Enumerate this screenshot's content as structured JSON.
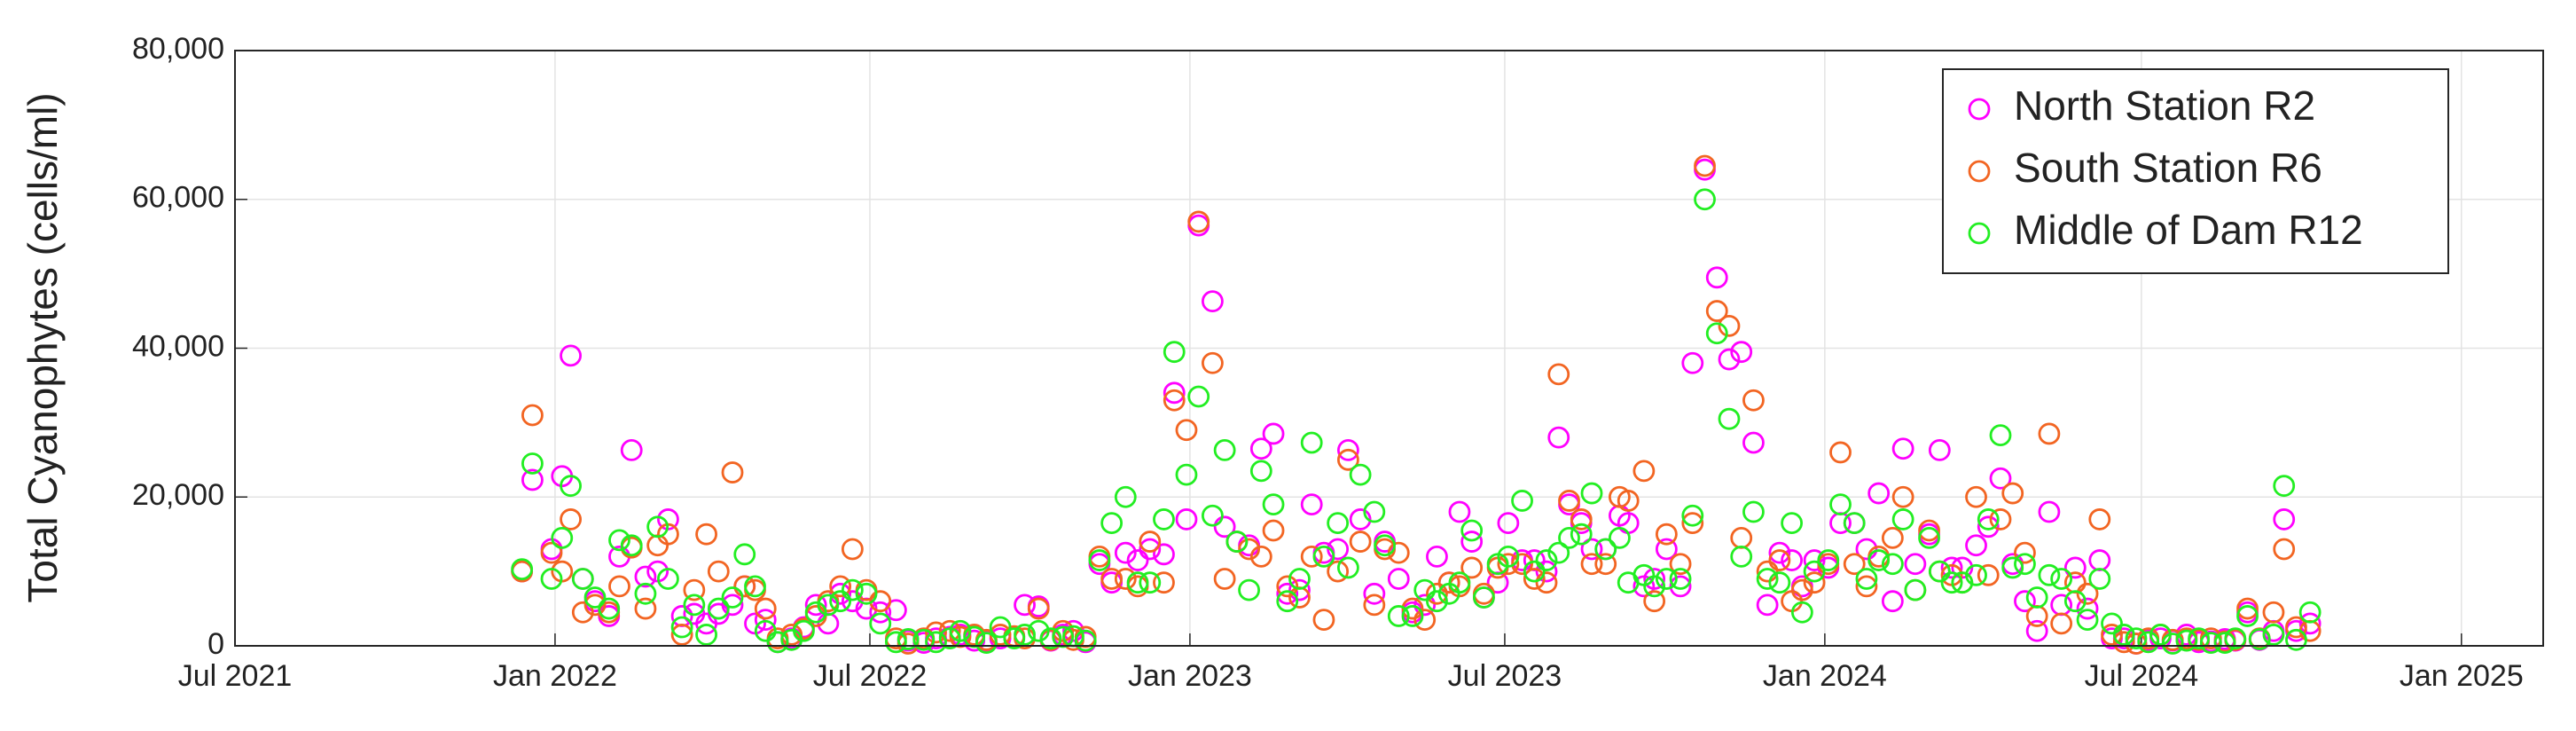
{
  "chart_data": {
    "type": "scatter",
    "y_label": "Total Cyanophytes (cells/ml)",
    "xlim": [
      "2021-07-01",
      "2025-02-17"
    ],
    "xticks": [
      {
        "value": "2021-07-01",
        "label": "Jul 2021"
      },
      {
        "value": "2022-01-01",
        "label": "Jan 2022"
      },
      {
        "value": "2022-07-01",
        "label": "Jul 2022"
      },
      {
        "value": "2023-01-01",
        "label": "Jan 2023"
      },
      {
        "value": "2023-07-01",
        "label": "Jul 2023"
      },
      {
        "value": "2024-01-01",
        "label": "Jan 2024"
      },
      {
        "value": "2024-07-01",
        "label": "Jul 2024"
      },
      {
        "value": "2025-01-01",
        "label": "Jan 2025"
      }
    ],
    "ylim": [
      0,
      80000
    ],
    "yticks": [
      0,
      {
        "value": 20000,
        "label": "20,000"
      },
      {
        "value": 40000,
        "label": "40,000"
      },
      {
        "value": 60000,
        "label": "60,000"
      },
      {
        "value": 80000,
        "label": "80,000"
      }
    ],
    "grid": true,
    "legend": "northeast",
    "x": [
      "2021-12-13",
      "2021-12-19",
      "2021-12-30",
      "2022-01-05",
      "2022-01-10",
      "2022-01-17",
      "2022-01-24",
      "2022-02-01",
      "2022-02-07",
      "2022-02-14",
      "2022-02-22",
      "2022-03-01",
      "2022-03-07",
      "2022-03-15",
      "2022-03-22",
      "2022-03-29",
      "2022-04-05",
      "2022-04-13",
      "2022-04-20",
      "2022-04-26",
      "2022-05-02",
      "2022-05-09",
      "2022-05-17",
      "2022-05-24",
      "2022-05-31",
      "2022-06-07",
      "2022-06-14",
      "2022-06-21",
      "2022-06-29",
      "2022-07-07",
      "2022-07-16",
      "2022-07-23",
      "2022-08-01",
      "2022-08-08",
      "2022-08-16",
      "2022-08-22",
      "2022-08-30",
      "2022-09-06",
      "2022-09-14",
      "2022-09-22",
      "2022-09-28",
      "2022-10-06",
      "2022-10-13",
      "2022-10-20",
      "2022-10-26",
      "2022-11-02",
      "2022-11-10",
      "2022-11-17",
      "2022-11-25",
      "2022-12-02",
      "2022-12-09",
      "2022-12-17",
      "2022-12-23",
      "2022-12-30",
      "2023-01-06",
      "2023-01-14",
      "2023-01-21",
      "2023-01-28",
      "2023-02-04",
      "2023-02-11",
      "2023-02-18",
      "2023-02-26",
      "2023-03-05",
      "2023-03-12",
      "2023-03-19",
      "2023-03-27",
      "2023-04-02",
      "2023-04-09",
      "2023-04-17",
      "2023-04-23",
      "2023-05-01",
      "2023-05-09",
      "2023-05-16",
      "2023-05-23",
      "2023-05-30",
      "2023-06-05",
      "2023-06-12",
      "2023-06-19",
      "2023-06-27",
      "2023-07-03",
      "2023-07-11",
      "2023-07-18",
      "2023-07-25",
      "2023-08-01",
      "2023-08-07",
      "2023-08-14",
      "2023-08-20",
      "2023-08-28",
      "2023-09-05",
      "2023-09-10",
      "2023-09-19",
      "2023-09-25",
      "2023-10-02",
      "2023-10-10",
      "2023-10-17",
      "2023-10-24",
      "2023-10-31",
      "2023-11-07",
      "2023-11-14",
      "2023-11-21",
      "2023-11-29",
      "2023-12-06",
      "2023-12-13",
      "2023-12-19",
      "2023-12-26",
      "2024-01-03",
      "2024-01-10",
      "2024-01-18",
      "2024-01-25",
      "2024-02-01",
      "2024-02-09",
      "2024-02-15",
      "2024-02-22",
      "2024-03-01",
      "2024-03-07",
      "2024-03-14",
      "2024-03-20",
      "2024-03-28",
      "2024-04-04",
      "2024-04-11",
      "2024-04-18",
      "2024-04-25",
      "2024-05-02",
      "2024-05-09",
      "2024-05-16",
      "2024-05-24",
      "2024-05-31",
      "2024-06-07",
      "2024-06-14",
      "2024-06-21",
      "2024-06-28",
      "2024-07-05",
      "2024-07-12",
      "2024-07-19",
      "2024-07-27",
      "2024-08-03",
      "2024-08-10",
      "2024-08-18",
      "2024-08-24",
      "2024-08-31",
      "2024-09-07",
      "2024-09-15",
      "2024-09-21",
      "2024-09-28",
      "2024-10-06"
    ],
    "series": [
      {
        "name": "North Station R2",
        "color": "#ff00ff",
        "values": [
          10000,
          22300,
          13000,
          22800,
          39000,
          9000,
          6000,
          4000,
          12000,
          26300,
          9300,
          10000,
          17000,
          4000,
          4300,
          3000,
          4300,
          5500,
          8000,
          3000,
          3500,
          500,
          1000,
          2500,
          5500,
          3000,
          7000,
          6000,
          5000,
          4500,
          4800,
          700,
          400,
          1000,
          1200,
          1500,
          700,
          600,
          1000,
          1200,
          5500,
          5300,
          700,
          1500,
          2000,
          500,
          11000,
          8500,
          12500,
          11500,
          13000,
          12300,
          34000,
          17000,
          56500,
          46300,
          16000,
          14000,
          13500,
          26500,
          28500,
          7000,
          7500,
          19000,
          12500,
          13000,
          26300,
          17000,
          7000,
          14000,
          9000,
          4500,
          5500,
          12000,
          8500,
          18000,
          14000,
          6500,
          8500,
          16500,
          11500,
          11500,
          10000,
          28000,
          19000,
          16500,
          13000,
          13000,
          17500,
          16500,
          8000,
          9000,
          13000,
          8000,
          38000,
          64000,
          49500,
          38500,
          39500,
          27300,
          5500,
          12500,
          11500,
          8000,
          11500,
          10500,
          16500,
          16500,
          13000,
          20500,
          6000,
          26500,
          11000,
          15000,
          26300,
          10500,
          10500,
          13500,
          16000,
          22500,
          11000,
          6000,
          2000,
          18000,
          5500,
          10500,
          5000,
          11500,
          1000,
          1000,
          300,
          800,
          1000,
          700,
          1500,
          500,
          600,
          900,
          700,
          4500,
          800,
          2000,
          17000,
          2000,
          3000
        ]
      },
      {
        "name": "South Station R6",
        "color": "#f26522",
        "values": [
          10000,
          31000,
          12500,
          10000,
          17000,
          4500,
          5500,
          4500,
          8000,
          13200,
          5000,
          13500,
          15000,
          1500,
          7500,
          15000,
          10000,
          23300,
          8000,
          7500,
          5000,
          1000,
          1500,
          2300,
          4000,
          6000,
          8000,
          13000,
          7500,
          6000,
          1000,
          300,
          1000,
          1800,
          2000,
          1200,
          1500,
          800,
          1500,
          1300,
          1000,
          5000,
          800,
          2000,
          800,
          1200,
          12000,
          9000,
          9000,
          8000,
          14000,
          8500,
          33000,
          29000,
          57000,
          38000,
          9000,
          14000,
          13000,
          12000,
          15500,
          8000,
          6500,
          12000,
          3500,
          10000,
          25000,
          14000,
          5500,
          13000,
          12500,
          5000,
          3500,
          7000,
          8500,
          8000,
          10500,
          7000,
          10500,
          11000,
          11000,
          9000,
          8500,
          36500,
          19500,
          17000,
          11000,
          11000,
          20000,
          19500,
          23500,
          6000,
          15000,
          11000,
          16500,
          64500,
          45000,
          43000,
          14500,
          33000,
          10000,
          11500,
          6000,
          7500,
          8500,
          11000,
          26000,
          11000,
          8000,
          12000,
          14500,
          20000,
          7500,
          15500,
          10000,
          9500,
          8500,
          20000,
          9500,
          17000,
          20500,
          12500,
          4000,
          28500,
          3000,
          8500,
          7000,
          17000,
          1500,
          500,
          300,
          1000,
          1500,
          800,
          1000,
          800,
          1000,
          600,
          800,
          5000,
          1000,
          4500,
          13000,
          2500,
          2000
        ]
      },
      {
        "name": "Middle of Dam R12",
        "color": "#22ee22",
        "values": [
          10300,
          24500,
          9000,
          14500,
          21500,
          9000,
          6500,
          5000,
          14200,
          13500,
          7000,
          16000,
          9000,
          2500,
          5500,
          1500,
          5000,
          6500,
          12300,
          8000,
          2000,
          500,
          800,
          2000,
          4500,
          5500,
          6000,
          7500,
          7000,
          3000,
          500,
          900,
          800,
          500,
          1000,
          2000,
          1200,
          400,
          2500,
          1000,
          1500,
          2000,
          1000,
          1200,
          1300,
          700,
          11500,
          16500,
          20000,
          8500,
          8500,
          17000,
          39500,
          23000,
          33500,
          17500,
          26300,
          14000,
          7500,
          23500,
          19000,
          6000,
          9000,
          27300,
          12000,
          16500,
          10500,
          23000,
          18000,
          13500,
          4000,
          4000,
          7500,
          6000,
          7000,
          8500,
          15500,
          6500,
          11000,
          12000,
          19500,
          10000,
          11500,
          12500,
          14500,
          15000,
          20500,
          13000,
          14500,
          8500,
          9500,
          8000,
          9000,
          9000,
          17500,
          60000,
          42000,
          30500,
          12000,
          18000,
          9000,
          8500,
          16500,
          4500,
          10000,
          11500,
          19000,
          16500,
          9000,
          11500,
          11000,
          17000,
          7500,
          14500,
          10000,
          8500,
          8500,
          9500,
          17000,
          28300,
          10500,
          11000,
          6500,
          9500,
          9000,
          6000,
          3500,
          9000,
          3000,
          1500,
          1000,
          500,
          1500,
          300,
          700,
          1000,
          400,
          400,
          1000,
          4000,
          900,
          1500,
          21500,
          800,
          4500
        ]
      }
    ]
  }
}
